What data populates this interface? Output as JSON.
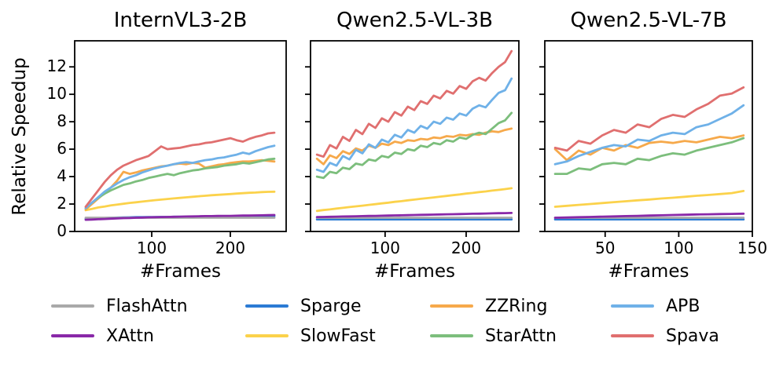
{
  "chart_data": {
    "type": "line",
    "ylabel": "Relative Speedup",
    "xlabel": "#Frames",
    "ylim": [
      0,
      13.9
    ],
    "yticks": [
      0,
      2,
      4,
      6,
      8,
      10,
      12
    ],
    "grid": false,
    "legend_position": "bottom",
    "colors": {
      "FlashAttn": "#a9a9a9",
      "XAttn": "#8928a8",
      "Sparge": "#2b7bd4",
      "SlowFast": "#fbd24b",
      "ZZRing": "#f6a94b",
      "StarAttn": "#7cbe7c",
      "APB": "#6fb1e8",
      "Spava": "#e06f6f"
    },
    "draw_order": [
      "Sparge",
      "FlashAttn",
      "XAttn",
      "SlowFast",
      "ZZRing",
      "StarAttn",
      "APB",
      "Spava"
    ],
    "legend_columns": [
      [
        "FlashAttn",
        "XAttn"
      ],
      [
        "Sparge",
        "SlowFast"
      ],
      [
        "ZZRing",
        "StarAttn"
      ],
      [
        "APB",
        "Spava"
      ]
    ],
    "panels": [
      {
        "title": "InternVL3-2B",
        "xlim": [
          2,
          271
        ],
        "xticks": [
          100,
          200
        ],
        "x": [
          16,
          24,
          32,
          40,
          48,
          56,
          64,
          72,
          80,
          88,
          96,
          104,
          112,
          120,
          128,
          136,
          144,
          152,
          160,
          168,
          176,
          184,
          192,
          200,
          208,
          216,
          224,
          232,
          240,
          248,
          256
        ],
        "series": {
          "FlashAttn": [
            1,
            1,
            1,
            1,
            1,
            1,
            1,
            1,
            1,
            1,
            1,
            1,
            1,
            1,
            1,
            1,
            1,
            1,
            1,
            1,
            1,
            1,
            1,
            1,
            1,
            1,
            1,
            1,
            1,
            1,
            1
          ],
          "XAttn": [
            0.85,
            0.87,
            0.89,
            0.91,
            0.93,
            0.95,
            0.97,
            0.98,
            1.0,
            1.01,
            1.03,
            1.04,
            1.05,
            1.06,
            1.07,
            1.08,
            1.09,
            1.1,
            1.11,
            1.12,
            1.12,
            1.13,
            1.14,
            1.14,
            1.15,
            1.16,
            1.16,
            1.17,
            1.18,
            1.19,
            1.2
          ],
          "Sparge": [
            0.92,
            0.94,
            0.96,
            0.98,
            1.0,
            1.01,
            1.02,
            1.03,
            1.04,
            1.04,
            1.05,
            1.05,
            1.06,
            1.06,
            1.07,
            1.07,
            1.07,
            1.08,
            1.08,
            1.08,
            1.09,
            1.09,
            1.09,
            1.1,
            1.1,
            1.1,
            1.1,
            1.11,
            1.11,
            1.11,
            1.12
          ],
          "SlowFast": [
            1.55,
            1.65,
            1.75,
            1.82,
            1.9,
            1.96,
            2.02,
            2.08,
            2.13,
            2.18,
            2.23,
            2.28,
            2.32,
            2.37,
            2.41,
            2.45,
            2.49,
            2.53,
            2.57,
            2.6,
            2.64,
            2.67,
            2.7,
            2.73,
            2.76,
            2.79,
            2.82,
            2.84,
            2.87,
            2.89,
            2.9
          ],
          "ZZRing": [
            1.6,
            2.0,
            2.4,
            2.8,
            3.2,
            3.7,
            4.35,
            4.2,
            4.3,
            4.45,
            4.55,
            4.65,
            4.75,
            4.8,
            4.9,
            4.95,
            4.9,
            5.0,
            4.95,
            4.65,
            4.75,
            4.85,
            4.9,
            5.0,
            5.05,
            5.1,
            5.1,
            5.15,
            5.2,
            5.15,
            5.1
          ],
          "StarAttn": [
            1.7,
            2.1,
            2.45,
            2.75,
            3.0,
            3.2,
            3.4,
            3.5,
            3.65,
            3.75,
            3.9,
            4.0,
            4.1,
            4.2,
            4.1,
            4.25,
            4.35,
            4.45,
            4.5,
            4.6,
            4.65,
            4.7,
            4.8,
            4.85,
            4.9,
            5.0,
            4.95,
            5.05,
            5.15,
            5.25,
            5.3
          ],
          "APB": [
            1.7,
            2.1,
            2.5,
            2.9,
            3.2,
            3.5,
            3.75,
            3.95,
            4.1,
            4.3,
            4.45,
            4.6,
            4.7,
            4.8,
            4.9,
            5.0,
            5.05,
            5.0,
            5.1,
            5.2,
            5.25,
            5.35,
            5.4,
            5.5,
            5.6,
            5.75,
            5.65,
            5.85,
            6.0,
            6.15,
            6.25
          ],
          "Spava": [
            1.8,
            2.4,
            3.0,
            3.6,
            4.1,
            4.5,
            4.8,
            5.0,
            5.2,
            5.35,
            5.5,
            5.85,
            6.2,
            6.0,
            6.05,
            6.1,
            6.2,
            6.3,
            6.35,
            6.45,
            6.5,
            6.6,
            6.7,
            6.8,
            6.65,
            6.55,
            6.75,
            6.9,
            7.0,
            7.15,
            7.2
          ]
        }
      },
      {
        "title": "Qwen2.5-VL-3B",
        "xlim": [
          8,
          265
        ],
        "xticks": [
          100,
          200
        ],
        "x": [
          16,
          24,
          32,
          40,
          48,
          56,
          64,
          72,
          80,
          88,
          96,
          104,
          112,
          120,
          128,
          136,
          144,
          152,
          160,
          168,
          176,
          184,
          192,
          200,
          208,
          216,
          224,
          232,
          240,
          248,
          256
        ],
        "series": {
          "FlashAttn": [
            1,
            1,
            1,
            1,
            1,
            1,
            1,
            1,
            1,
            1,
            1,
            1,
            1,
            1,
            1,
            1,
            1,
            1,
            1,
            1,
            1,
            1,
            1,
            1,
            1,
            1,
            1,
            1,
            1,
            1,
            1
          ],
          "XAttn": [
            1.05,
            1.06,
            1.07,
            1.08,
            1.09,
            1.1,
            1.11,
            1.12,
            1.13,
            1.14,
            1.15,
            1.16,
            1.17,
            1.18,
            1.19,
            1.2,
            1.21,
            1.22,
            1.23,
            1.24,
            1.25,
            1.26,
            1.27,
            1.28,
            1.29,
            1.3,
            1.31,
            1.32,
            1.33,
            1.34,
            1.35
          ],
          "Sparge": [
            0.88,
            0.88,
            0.88,
            0.88,
            0.88,
            0.88,
            0.88,
            0.88,
            0.88,
            0.88,
            0.88,
            0.88,
            0.88,
            0.88,
            0.88,
            0.88,
            0.88,
            0.88,
            0.88,
            0.88,
            0.88,
            0.88,
            0.88,
            0.88,
            0.88,
            0.88,
            0.88,
            0.88,
            0.88,
            0.88,
            0.88
          ],
          "SlowFast": [
            1.5,
            1.56,
            1.61,
            1.67,
            1.72,
            1.78,
            1.83,
            1.88,
            1.94,
            1.99,
            2.05,
            2.1,
            2.16,
            2.21,
            2.27,
            2.32,
            2.38,
            2.43,
            2.48,
            2.54,
            2.59,
            2.65,
            2.7,
            2.76,
            2.81,
            2.87,
            2.92,
            2.98,
            3.03,
            3.09,
            3.15
          ],
          "ZZRing": [
            5.3,
            4.9,
            5.55,
            5.35,
            5.85,
            5.65,
            6.05,
            5.9,
            6.25,
            6.1,
            6.4,
            6.3,
            6.55,
            6.45,
            6.65,
            6.6,
            6.75,
            6.7,
            6.85,
            6.8,
            6.95,
            6.9,
            7.05,
            7.0,
            7.1,
            7.05,
            7.2,
            7.3,
            7.25,
            7.4,
            7.5
          ],
          "StarAttn": [
            4.0,
            3.9,
            4.35,
            4.25,
            4.65,
            4.55,
            4.95,
            4.85,
            5.25,
            5.15,
            5.5,
            5.4,
            5.75,
            5.65,
            6.0,
            5.9,
            6.25,
            6.15,
            6.45,
            6.35,
            6.65,
            6.55,
            6.85,
            6.75,
            7.05,
            7.2,
            7.1,
            7.5,
            7.9,
            8.1,
            8.65
          ],
          "APB": [
            4.5,
            4.35,
            5.0,
            4.8,
            5.5,
            5.25,
            5.95,
            5.7,
            6.35,
            6.1,
            6.7,
            6.5,
            7.05,
            6.85,
            7.4,
            7.2,
            7.7,
            7.5,
            8.0,
            7.85,
            8.3,
            8.15,
            8.6,
            8.45,
            8.95,
            9.2,
            9.05,
            9.6,
            10.1,
            10.3,
            11.15
          ],
          "Spava": [
            5.6,
            5.45,
            6.3,
            6.05,
            6.9,
            6.6,
            7.4,
            7.1,
            7.85,
            7.55,
            8.25,
            8.0,
            8.7,
            8.45,
            9.1,
            8.85,
            9.5,
            9.3,
            9.9,
            9.7,
            10.25,
            10.05,
            10.6,
            10.4,
            10.95,
            11.2,
            11.0,
            11.55,
            12.0,
            12.35,
            13.15
          ]
        }
      },
      {
        "title": "Qwen2.5-VL-7B",
        "xlim": [
          9,
          150
        ],
        "xticks": [
          50,
          100,
          150
        ],
        "x": [
          16,
          24,
          32,
          40,
          48,
          56,
          64,
          72,
          80,
          88,
          96,
          104,
          112,
          120,
          128,
          136,
          144
        ],
        "series": {
          "FlashAttn": [
            1,
            1,
            1,
            1,
            1,
            1,
            1,
            1,
            1,
            1,
            1,
            1,
            1,
            1,
            1,
            1,
            1
          ],
          "XAttn": [
            1.0,
            1.02,
            1.04,
            1.06,
            1.08,
            1.1,
            1.12,
            1.14,
            1.16,
            1.18,
            1.2,
            1.22,
            1.24,
            1.25,
            1.27,
            1.28,
            1.3
          ],
          "Sparge": [
            0.88,
            0.88,
            0.88,
            0.88,
            0.88,
            0.88,
            0.88,
            0.88,
            0.88,
            0.88,
            0.88,
            0.88,
            0.88,
            0.88,
            0.88,
            0.88,
            0.88
          ],
          "SlowFast": [
            1.8,
            1.87,
            1.94,
            2.0,
            2.07,
            2.14,
            2.2,
            2.27,
            2.33,
            2.4,
            2.46,
            2.53,
            2.6,
            2.66,
            2.73,
            2.8,
            2.95
          ],
          "ZZRing": [
            6.0,
            5.2,
            5.9,
            5.6,
            6.1,
            5.9,
            6.3,
            6.1,
            6.45,
            6.55,
            6.45,
            6.6,
            6.5,
            6.7,
            6.9,
            6.8,
            7.0
          ],
          "StarAttn": [
            4.2,
            4.2,
            4.6,
            4.5,
            4.9,
            5.0,
            4.9,
            5.3,
            5.2,
            5.5,
            5.7,
            5.6,
            5.9,
            6.1,
            6.3,
            6.5,
            6.8
          ],
          "APB": [
            4.9,
            5.1,
            5.5,
            5.8,
            6.1,
            6.3,
            6.2,
            6.7,
            6.6,
            7.0,
            7.2,
            7.1,
            7.6,
            7.8,
            8.2,
            8.6,
            9.2
          ],
          "Spava": [
            6.1,
            5.9,
            6.6,
            6.4,
            7.0,
            7.4,
            7.2,
            7.8,
            7.6,
            8.2,
            8.5,
            8.35,
            8.9,
            9.3,
            9.9,
            10.05,
            10.5
          ]
        }
      }
    ]
  }
}
